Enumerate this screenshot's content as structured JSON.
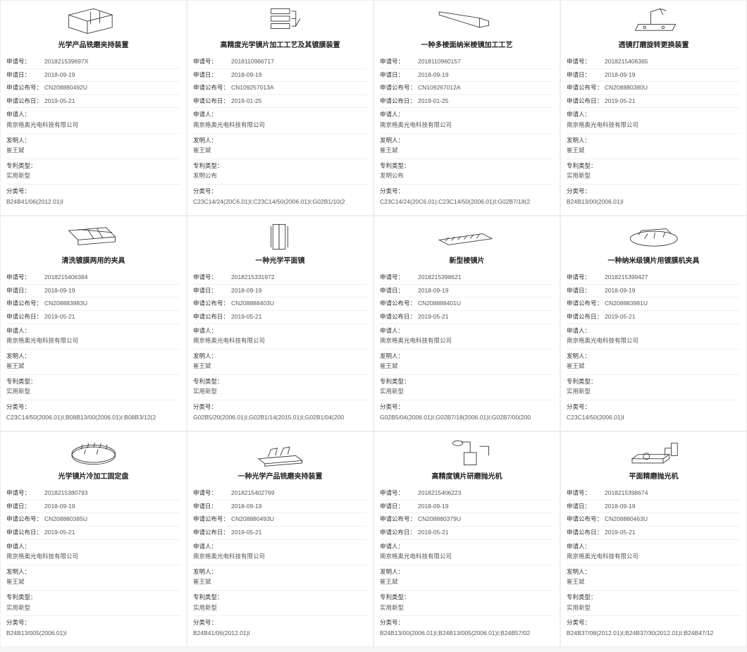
{
  "labels": {
    "appNo": "申请号：",
    "appDate": "申请日：",
    "pubNo": "申请公布号：",
    "pubDate": "申请公布日：",
    "applicant": "申请人：",
    "inventor": "发明人：",
    "type": "专利类型：",
    "cls": "分类号："
  },
  "common": {
    "applicant": "南京格奥光电科技有限公司",
    "inventor": "崔王斌",
    "type_util": "实用新型",
    "type_inv": "发明公布"
  },
  "cards": [
    {
      "title": "光学产品铣磨夹持装置",
      "appNo": "201821539697X",
      "appDate": "2018-09-19",
      "pubNo": "CN208880492U",
      "pubDate": "2019-05-21",
      "type": "实用新型",
      "cls": "B24B41/06(2012.01)I",
      "svg": "box3d"
    },
    {
      "title": "高精度光学镜片加工工艺及其镀膜装置",
      "appNo": "2018110966717",
      "appDate": "2018-09-19",
      "pubNo": "CN109257013A",
      "pubDate": "2019-01-25",
      "type": "发明公布",
      "cls": "C23C14/24(20C6.01)I;C23C14/50(2006.01)I;G02B1/10(2",
      "svg": "stack"
    },
    {
      "title": "一种多棱面纳米棱镜加工工艺",
      "appNo": "2018110960157",
      "appDate": "2018-09-19",
      "pubNo": "CN109267012A",
      "pubDate": "2019-01-25",
      "type": "发明公布",
      "cls": "C23C14/24(20C6.01);C23C14/50(2006.01)I;G02B7/18(2",
      "svg": "prism"
    },
    {
      "title": "透镜打磨旋转更换装置",
      "appNo": "2018215406365",
      "appDate": "2018-09-19",
      "pubNo": "CN208880380U",
      "pubDate": "2019-05-21",
      "type": "实用新型",
      "cls": "B24B13/00(2006.01)I",
      "svg": "rotary"
    },
    {
      "title": "清洗镀膜两用的夹具",
      "appNo": "2018215406384",
      "appDate": "2018-09-19",
      "pubNo": "CN208883983U",
      "pubDate": "2019-05-21",
      "type": "实用新型",
      "cls": "C23C14/50(2006.01)I;B08B13/00(2006.01)I;B08B3/12(2",
      "svg": "gridfix"
    },
    {
      "title": "一种光学平面镜",
      "appNo": "2018215331972",
      "appDate": "2018-09-19",
      "pubNo": "CN208888403U",
      "pubDate": "2019-05-21",
      "type": "实用新型",
      "cls": "G02B5/20(2006.01)I;G02B1/14(2015.01)I;G02B1/04(200",
      "svg": "flatmirror"
    },
    {
      "title": "新型棱镜片",
      "appNo": "2018215398621",
      "appDate": "2018-09-19",
      "pubNo": "CN208888401U",
      "pubDate": "2019-05-21",
      "type": "实用新型",
      "cls": "G02B5/04(2006.01)I;G02B7/18(2006.01)I;G02B7/00(200",
      "svg": "prismsheet"
    },
    {
      "title": "一种纳米级镜片用镀膜机夹具",
      "appNo": "2018215399427",
      "appDate": "2018-09-19",
      "pubNo": "CN208883981U",
      "pubDate": "2019-05-21",
      "type": "实用新型",
      "cls": "C23C14/50(2006.01)I",
      "svg": "coatfix"
    },
    {
      "title": "光学镜片冷加工固定盘",
      "appNo": "2018215380793",
      "appDate": "2018-09-19",
      "pubNo": "CN208880385U",
      "pubDate": "2019-05-21",
      "type": "实用新型",
      "cls": "B24B13/005(2006.01)I",
      "svg": "disc"
    },
    {
      "title": "一种光学产品铣磨夹持装置",
      "appNo": "2018215402769",
      "appDate": "2018-09-19",
      "pubNo": "CN208880493U",
      "pubDate": "2019-05-21",
      "type": "实用新型",
      "cls": "B24B41/06(2012.01)I",
      "svg": "clamp"
    },
    {
      "title": "高精度镜片研磨抛光机",
      "appNo": "2018215406223",
      "appDate": "2018-09-19",
      "pubNo": "CN208880379U",
      "pubDate": "2019-05-21",
      "type": "实用新型",
      "cls": "B24B13/00(2006.01)I;B24B13/005(2006.01)I;B24B57/02",
      "svg": "polisher"
    },
    {
      "title": "平面精磨抛光机",
      "appNo": "2018215398674",
      "appDate": "2018-09-19",
      "pubNo": "CN208880463U",
      "pubDate": "2019-05-21",
      "type": "实用新型",
      "cls": "B24B37/08(2012.01)I;B24B37/30(2012.01)I;B24B47/12",
      "svg": "flatpolish"
    }
  ]
}
